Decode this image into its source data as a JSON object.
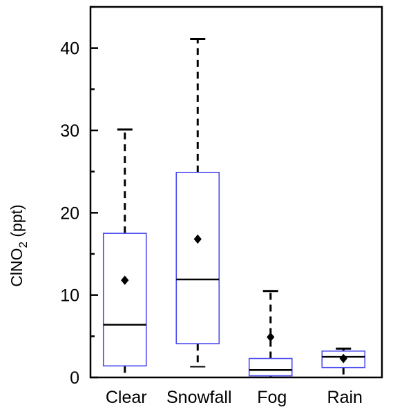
{
  "chart_data": {
    "type": "box",
    "ylabel": {
      "main": "ClNO",
      "sub": "2",
      "unit": " (ppt)"
    },
    "ylim": [
      0,
      45
    ],
    "yticks": [
      0,
      10,
      20,
      30,
      40
    ],
    "yminor": [
      5,
      15,
      25,
      35,
      45
    ],
    "grid": false,
    "box_color": "#4a4af0",
    "median_color": "#000000",
    "categories": [
      "Clear",
      "Snowfall",
      "Fog",
      "Rain"
    ],
    "boxes": [
      {
        "name": "Clear",
        "whisker_low": 0,
        "q1": 1.4,
        "median": 6.4,
        "q3": 17.5,
        "whisker_high": 30.1,
        "mean": 11.8
      },
      {
        "name": "Snowfall",
        "whisker_low": 1.3,
        "q1": 4.1,
        "median": 11.9,
        "q3": 24.9,
        "whisker_high": 41.1,
        "mean": 16.8
      },
      {
        "name": "Fog",
        "whisker_low": 0,
        "q1": 0.2,
        "median": 0.9,
        "q3": 2.3,
        "whisker_high": 10.5,
        "mean": 4.9
      },
      {
        "name": "Rain",
        "whisker_low": 0,
        "q1": 1.2,
        "median": 2.5,
        "q3": 3.2,
        "whisker_high": 3.5,
        "mean": 2.3
      }
    ]
  }
}
